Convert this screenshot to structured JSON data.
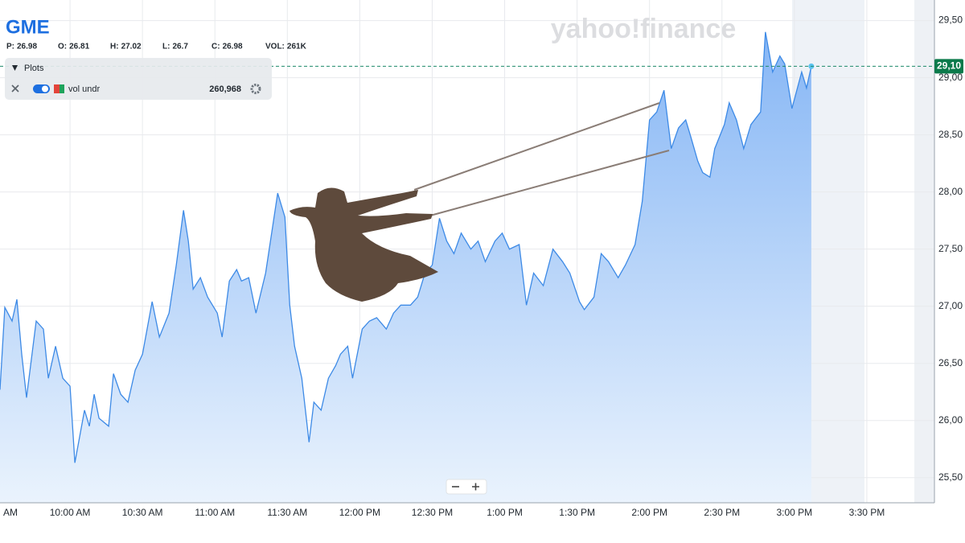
{
  "header": {
    "symbol": "GME",
    "stats": [
      {
        "label": "P:",
        "value": "26.98"
      },
      {
        "label": "O:",
        "value": "26.81"
      },
      {
        "label": "H:",
        "value": "27.02"
      },
      {
        "label": "L:",
        "value": "26.7"
      },
      {
        "label": "C:",
        "value": "26.98"
      },
      {
        "label": "VOL:",
        "value": "261K"
      }
    ]
  },
  "plots_panel": {
    "title": "Plots",
    "indicator": "vol undr",
    "indicator_value": "260,968"
  },
  "watermark": "yahoo!finance",
  "chart_data": {
    "type": "area",
    "color": "#3d8ae6",
    "grid": true,
    "x": [
      571,
      573,
      576,
      578,
      580,
      582,
      586,
      589,
      591,
      594,
      597,
      600,
      602,
      606,
      608,
      610,
      612,
      616,
      618,
      621,
      624,
      627,
      630,
      634,
      637,
      641,
      644,
      647,
      649,
      651,
      654,
      657,
      661,
      663,
      666,
      669,
      671,
      674,
      677,
      681,
      686,
      689,
      691,
      693,
      696,
      699,
      701,
      704,
      707,
      710,
      712,
      715,
      717,
      721,
      724,
      727,
      731,
      734,
      737,
      741,
      744,
      747,
      750,
      753,
      756,
      759,
      762,
      766,
      769,
      772,
      776,
      779,
      782,
      786,
      789,
      792,
      796,
      800,
      804,
      807,
      811,
      813,
      817,
      820,
      823,
      827,
      830,
      834,
      837,
      840,
      843,
      846,
      849,
      852,
      855,
      857,
      860,
      862,
      865,
      867,
      871,
      873,
      876,
      879,
      882,
      886,
      888,
      891,
      894,
      896,
      899,
      903,
      905,
      907
    ],
    "values": [
      26.27,
      26.99,
      26.87,
      27.06,
      26.58,
      26.2,
      26.87,
      26.8,
      26.37,
      26.65,
      26.37,
      26.3,
      25.63,
      26.09,
      25.95,
      26.23,
      26.02,
      25.95,
      26.41,
      26.23,
      26.16,
      26.44,
      26.58,
      27.04,
      26.73,
      26.94,
      27.36,
      27.84,
      27.57,
      27.15,
      27.25,
      27.08,
      26.94,
      26.73,
      27.22,
      27.32,
      27.22,
      27.25,
      26.94,
      27.29,
      27.99,
      27.78,
      27.01,
      26.65,
      26.37,
      25.81,
      26.16,
      26.09,
      26.37,
      26.48,
      26.58,
      26.65,
      26.37,
      26.8,
      26.87,
      26.9,
      26.8,
      26.94,
      27.01,
      27.01,
      27.08,
      27.29,
      27.36,
      27.77,
      27.57,
      27.46,
      27.64,
      27.5,
      27.57,
      27.39,
      27.57,
      27.64,
      27.5,
      27.54,
      27.01,
      27.29,
      27.18,
      27.5,
      27.39,
      27.29,
      27.04,
      26.97,
      27.08,
      27.46,
      27.39,
      27.25,
      27.36,
      27.54,
      27.92,
      28.63,
      28.7,
      28.89,
      28.38,
      28.56,
      28.63,
      28.49,
      28.27,
      28.17,
      28.13,
      28.38,
      28.59,
      28.78,
      28.63,
      28.38,
      28.59,
      28.7,
      29.4,
      29.05,
      29.19,
      29.12,
      28.73,
      29.05,
      28.91,
      29.1
    ],
    "xlim": [
      571,
      958
    ],
    "xticks": [
      {
        "value": 570,
        "label": "AM"
      },
      {
        "value": 600,
        "label": "10:00 AM"
      },
      {
        "value": 630,
        "label": "10:30 AM"
      },
      {
        "value": 660,
        "label": "11:00 AM"
      },
      {
        "value": 690,
        "label": "11:30 AM"
      },
      {
        "value": 720,
        "label": "12:00 PM"
      },
      {
        "value": 750,
        "label": "12:30 PM"
      },
      {
        "value": 780,
        "label": "1:00 PM"
      },
      {
        "value": 810,
        "label": "1:30 PM"
      },
      {
        "value": 840,
        "label": "2:00 PM"
      },
      {
        "value": 870,
        "label": "2:30 PM"
      },
      {
        "value": 900,
        "label": "3:00 PM"
      },
      {
        "value": 930,
        "label": "3:30 PM"
      }
    ],
    "ylim": [
      25.28,
      29.68
    ],
    "yticks": [
      {
        "value": 25.5,
        "label": "25,50"
      },
      {
        "value": 26,
        "label": "26,00"
      },
      {
        "value": 26.5,
        "label": "26,50"
      },
      {
        "value": 27,
        "label": "27,00"
      },
      {
        "value": 27.5,
        "label": "27,50"
      },
      {
        "value": 28,
        "label": "28,00"
      },
      {
        "value": 28.5,
        "label": "28,50"
      },
      {
        "value": 29,
        "label": "29,00"
      },
      {
        "value": 29.5,
        "label": "29,50"
      }
    ],
    "last_price": {
      "value": 29.1,
      "label": "29,10"
    }
  }
}
